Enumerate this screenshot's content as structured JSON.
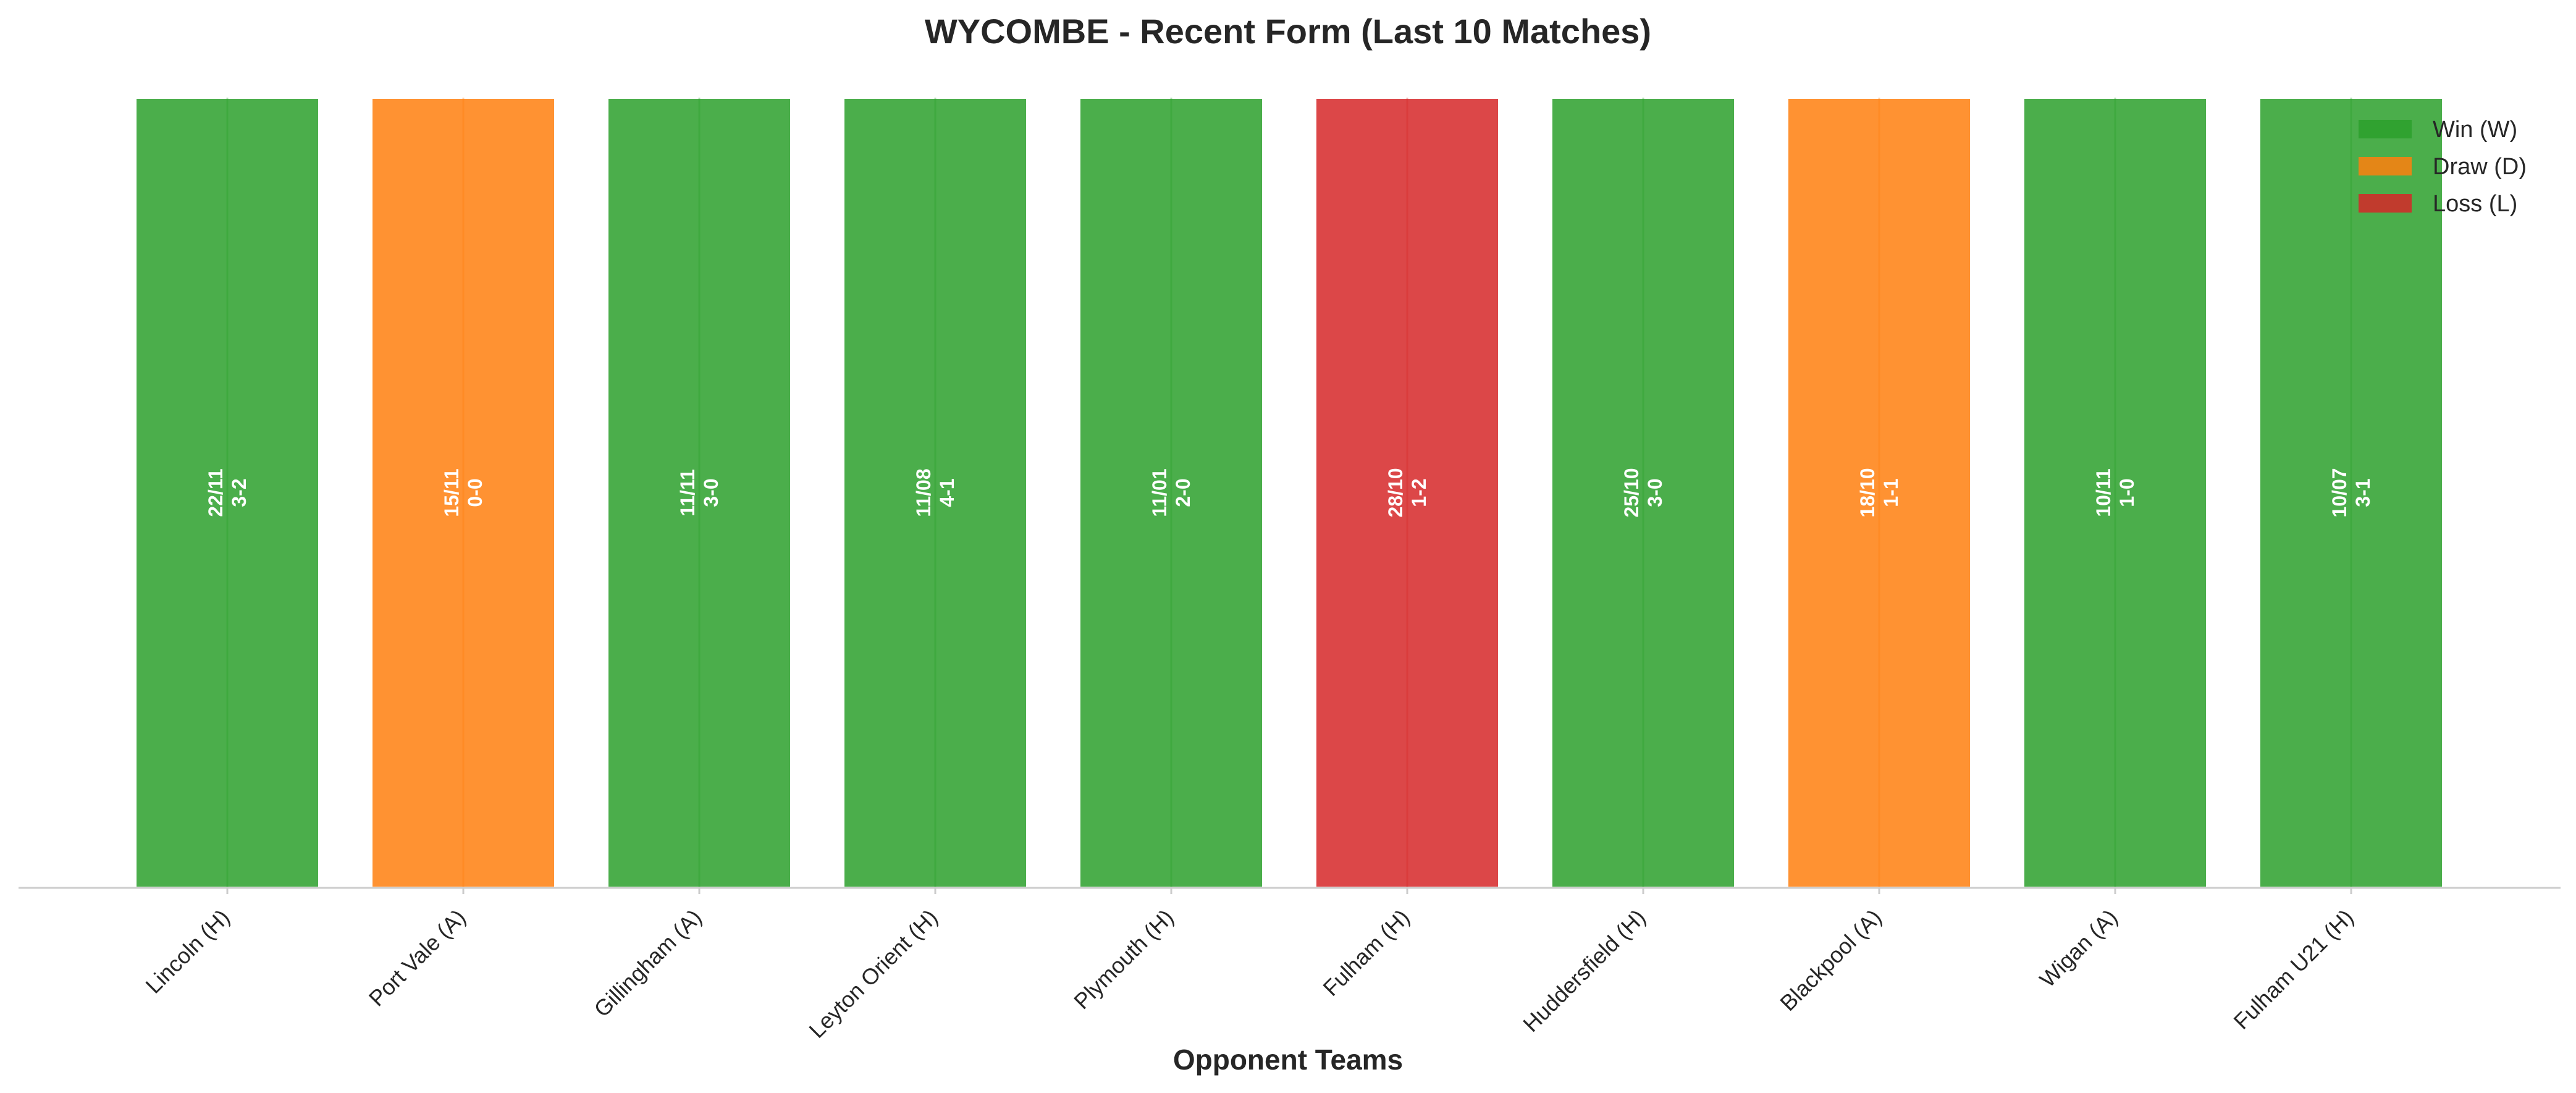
{
  "chart_data": {
    "type": "bar",
    "title": "WYCOMBE - Recent Form (Last 10 Matches)",
    "xlabel": "Opponent Teams",
    "ylabel": "",
    "categories": [
      "Lincoln (H)",
      "Port Vale (A)",
      "Gillingham (A)",
      "Leyton Orient (H)",
      "Plymouth (H)",
      "Fulham (H)",
      "Huddersfield (H)",
      "Blackpool (A)",
      "Wigan (A)",
      "Fulham U21 (H)"
    ],
    "values": [
      1,
      1,
      1,
      1,
      1,
      1,
      1,
      1,
      1,
      1
    ],
    "results": [
      "W",
      "D",
      "W",
      "W",
      "W",
      "L",
      "W",
      "D",
      "W",
      "W"
    ],
    "dates": [
      "22/11",
      "15/11",
      "11/11",
      "11/08",
      "11/01",
      "28/10",
      "25/10",
      "18/10",
      "10/11",
      "10/07"
    ],
    "scores": [
      "3-2",
      "0-0",
      "3-0",
      "4-1",
      "2-0",
      "1-2",
      "3-0",
      "1-1",
      "1-0",
      "3-1"
    ],
    "ylim": [
      0,
      1
    ],
    "grid": false,
    "legend_position": "top-right",
    "legend": [
      {
        "key": "W",
        "label": "Win (W)",
        "color": "#2ca02c"
      },
      {
        "key": "D",
        "label": "Draw (D)",
        "color": "#ff7f0e"
      },
      {
        "key": "L",
        "label": "Loss (L)",
        "color": "#d62728"
      }
    ],
    "bar_alpha": 0.85
  }
}
